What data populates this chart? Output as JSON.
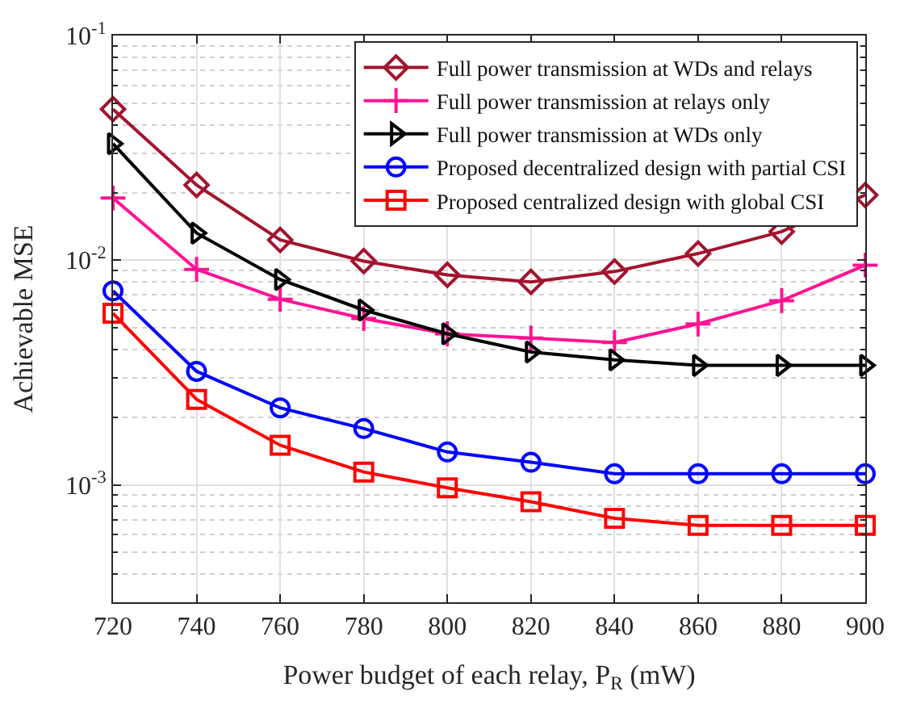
{
  "chart_data": {
    "type": "line",
    "xlabel": "Power budget of each relay, P$_{R}$ (mW)",
    "ylabel": "Achievable MSE",
    "x": [
      720,
      740,
      760,
      780,
      800,
      820,
      840,
      860,
      880,
      900
    ],
    "xlim": [
      720,
      900
    ],
    "xticks": [
      720,
      740,
      760,
      780,
      800,
      820,
      840,
      860,
      880,
      900
    ],
    "ylim": [
      0.0003,
      0.1
    ],
    "yticks": [
      {
        "value": 0.001,
        "label": "10$^{-3}$"
      },
      {
        "value": 0.01,
        "label": "10$^{-2}$"
      },
      {
        "value": 0.1,
        "label": "10$^{-1}$"
      }
    ],
    "log": "y",
    "grid": true,
    "legend": "top right",
    "series": [
      {
        "name": "Full power transmission at WDs and relays",
        "color": "#a2142f",
        "marker": "diamond",
        "values": [
          0.047,
          0.0216,
          0.0123,
          0.0099,
          0.0086,
          0.008,
          0.0089,
          0.0107,
          0.0134,
          0.0195
        ]
      },
      {
        "name": "Full power transmission at relays only",
        "color": "#ff1493",
        "marker": "cross",
        "values": [
          0.0189,
          0.0091,
          0.0067,
          0.0055,
          0.0047,
          0.0045,
          0.0043,
          0.0052,
          0.0066,
          0.0095
        ]
      },
      {
        "name": "Full power transmission at WDs only",
        "color": "#000000",
        "marker": "triangle",
        "values": [
          0.033,
          0.0132,
          0.0082,
          0.006,
          0.0047,
          0.0039,
          0.0036,
          0.0034,
          0.0034,
          0.0034
        ]
      },
      {
        "name": "Proposed decentralized design with partial CSI",
        "color": "#0000ff",
        "marker": "circle",
        "values": [
          0.0073,
          0.0032,
          0.0022,
          0.00178,
          0.0014,
          0.00126,
          0.00112,
          0.00112,
          0.00112,
          0.00112
        ]
      },
      {
        "name": "Proposed centralized design with global CSI",
        "color": "#ff0000",
        "marker": "square",
        "values": [
          0.0058,
          0.0024,
          0.0015,
          0.00114,
          0.00097,
          0.00084,
          0.00071,
          0.00066,
          0.00066,
          0.00066
        ]
      }
    ]
  }
}
